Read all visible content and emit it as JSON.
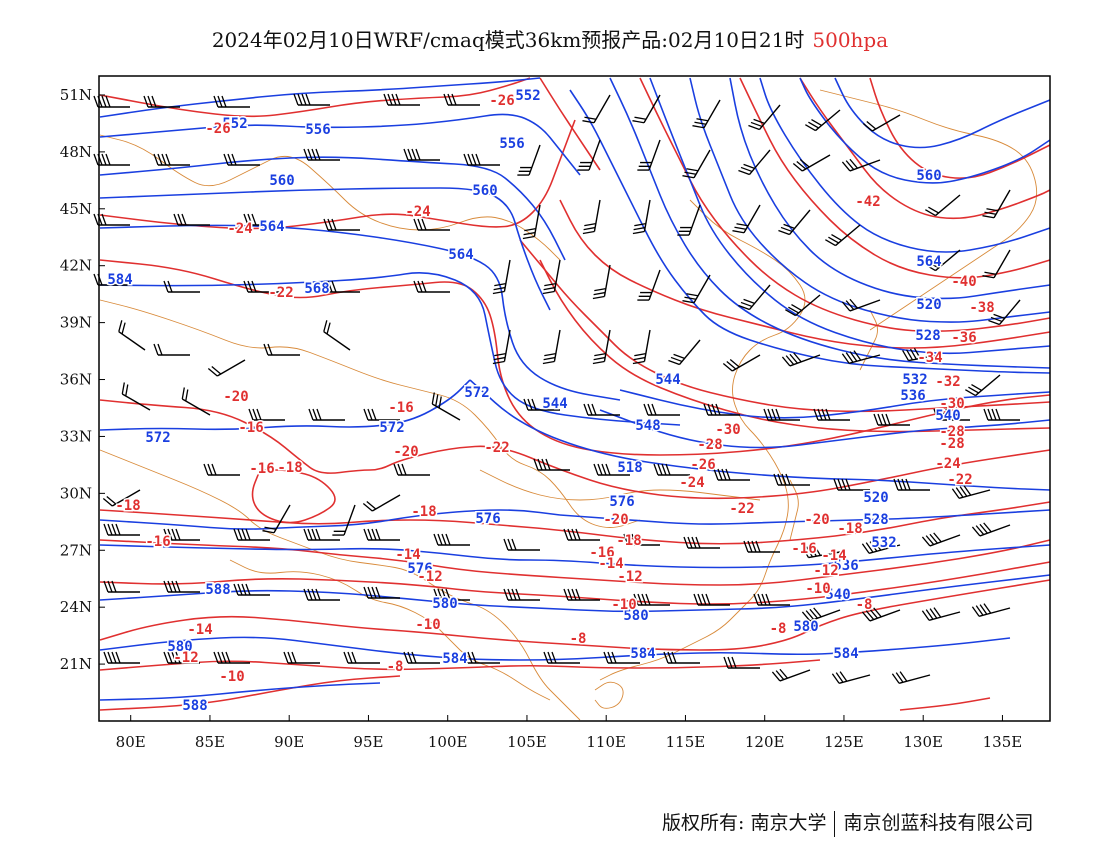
{
  "title": {
    "main": "2024年02月10日WRF/cmaq模式36km预报产品:02月10日21时",
    "level": "500hpa"
  },
  "axes": {
    "lon_labels": [
      "80E",
      "85E",
      "90E",
      "95E",
      "100E",
      "105E",
      "110E",
      "115E",
      "120E",
      "125E",
      "130E",
      "135E"
    ],
    "lat_labels": [
      "51N",
      "48N",
      "45N",
      "42N",
      "39N",
      "36N",
      "33N",
      "30N",
      "27N",
      "24N",
      "21N"
    ]
  },
  "colors": {
    "height": "#1a3fe0",
    "temperature": "#e03030",
    "wind": "#000000",
    "border": "#d88a3a"
  },
  "chart_data": {
    "type": "map",
    "lon_range": [
      78,
      138
    ],
    "lat_range": [
      18,
      52
    ],
    "height_contour_labels": [
      "552",
      "556",
      "560",
      "564",
      "568",
      "572",
      "576",
      "580",
      "584",
      "588",
      "518",
      "520",
      "528",
      "532",
      "536",
      "540",
      "544",
      "548"
    ],
    "temperature_contour_labels": [
      "-42",
      "-40",
      "-38",
      "-36",
      "-34",
      "-32",
      "-30",
      "-28",
      "-26",
      "-24",
      "-22",
      "-20",
      "-18",
      "-16",
      "-14",
      "-12",
      "-10",
      "-8"
    ]
  },
  "footer": {
    "owner": "版权所有: 南京大学",
    "company": "南京创蓝科技有限公司"
  }
}
